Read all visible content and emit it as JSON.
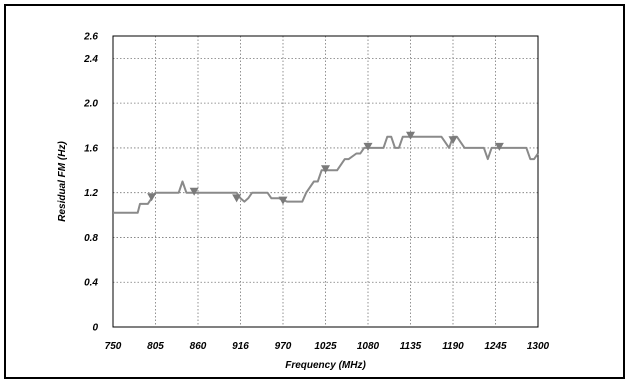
{
  "chart_data": {
    "type": "line",
    "title": "",
    "xlabel": "Frequency (MHz)",
    "ylabel": "Residual FM (Hz)",
    "xlim": [
      750,
      1300
    ],
    "ylim": [
      0,
      2.6
    ],
    "x_ticks": [
      "750",
      "805",
      "860",
      "916",
      "970",
      "1025",
      "1080",
      "1135",
      "1190",
      "1245",
      "1300"
    ],
    "y_ticks": [
      "0",
      "0.4",
      "0.8",
      "1.2",
      "1.6",
      "2.0",
      "2.4",
      "2.6"
    ],
    "grid": true,
    "series": [
      {
        "name": "",
        "color": "#8a8a8a",
        "x": [
          750,
          782,
          785,
          795,
          800,
          805,
          835,
          840,
          845,
          850,
          905,
          910,
          915,
          920,
          925,
          930,
          950,
          955,
          965,
          975,
          995,
          1000,
          1010,
          1015,
          1020,
          1035,
          1040,
          1050,
          1055,
          1065,
          1070,
          1075,
          1080,
          1085,
          1100,
          1105,
          1110,
          1115,
          1120,
          1125,
          1130,
          1160,
          1175,
          1180,
          1185,
          1190,
          1195,
          1200,
          1205,
          1210,
          1230,
          1235,
          1240,
          1245,
          1285,
          1290,
          1295,
          1300
        ],
        "y": [
          1.02,
          1.02,
          1.1,
          1.1,
          1.15,
          1.2,
          1.2,
          1.3,
          1.2,
          1.2,
          1.2,
          1.2,
          1.15,
          1.12,
          1.15,
          1.2,
          1.2,
          1.15,
          1.15,
          1.12,
          1.12,
          1.2,
          1.3,
          1.3,
          1.4,
          1.4,
          1.4,
          1.5,
          1.5,
          1.55,
          1.55,
          1.6,
          1.6,
          1.6,
          1.6,
          1.7,
          1.7,
          1.6,
          1.6,
          1.7,
          1.7,
          1.7,
          1.7,
          1.65,
          1.6,
          1.7,
          1.7,
          1.65,
          1.6,
          1.6,
          1.6,
          1.5,
          1.6,
          1.6,
          1.6,
          1.5,
          1.5,
          1.55
        ]
      }
    ],
    "markers": {
      "shape": "triangle-down",
      "x": [
        800,
        855,
        910,
        970,
        1025,
        1080,
        1135,
        1190,
        1250
      ],
      "y": [
        1.15,
        1.2,
        1.14,
        1.12,
        1.4,
        1.6,
        1.7,
        1.66,
        1.6
      ]
    }
  }
}
